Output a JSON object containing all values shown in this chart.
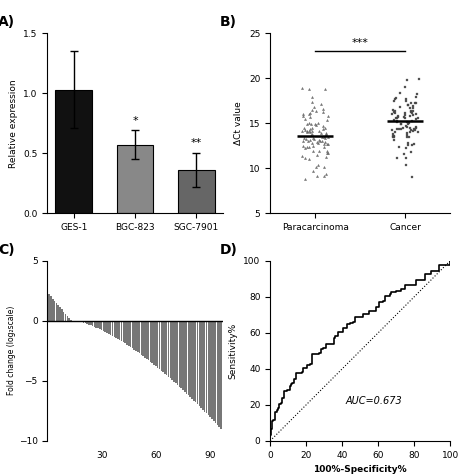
{
  "panel_A": {
    "categories": [
      "GES-1",
      "BGC-823",
      "SGC-7901"
    ],
    "values": [
      1.03,
      0.57,
      0.36
    ],
    "errors": [
      0.32,
      0.12,
      0.14
    ],
    "colors": [
      "#111111",
      "#888888",
      "#666666"
    ],
    "ylabel": "Relative expression",
    "ylim": [
      0,
      1.5
    ],
    "yticks": [
      0.0,
      0.5,
      1.0,
      1.5
    ],
    "significance": [
      "",
      "*",
      "**"
    ],
    "label": "A)"
  },
  "panel_B": {
    "group1_label": "Paracarcinoma",
    "group2_label": "Cancer",
    "group1_mean": 13.5,
    "group2_mean": 15.0,
    "group1_n": 90,
    "group2_n": 90,
    "group1_spread": 2.2,
    "group2_spread": 2.0,
    "ylabel": "ΔCt value",
    "ylim": [
      5,
      25
    ],
    "yticks": [
      5,
      10,
      15,
      20,
      25
    ],
    "significance": "***",
    "label": "B)"
  },
  "panel_C": {
    "n_samples": 96,
    "positive_n": 13,
    "ylabel": "Fold change (log₂scale)",
    "ylim": [
      -10,
      5
    ],
    "yticks": [
      -10,
      -5,
      0,
      5
    ],
    "xticks": [
      30,
      60,
      90
    ],
    "label": "C)"
  },
  "panel_D": {
    "ylabel": "Sensitivity%",
    "xlabel": "100%-Specificity%",
    "ylim": [
      0,
      100
    ],
    "xlim": [
      0,
      100
    ],
    "yticks": [
      0,
      20,
      40,
      60,
      80,
      100
    ],
    "xticks": [
      0,
      20,
      40,
      60,
      80,
      100
    ],
    "auc": 0.673,
    "auc_label": "AUC=0.673",
    "label": "D)"
  },
  "background_color": "#ffffff",
  "text_color": "#000000"
}
